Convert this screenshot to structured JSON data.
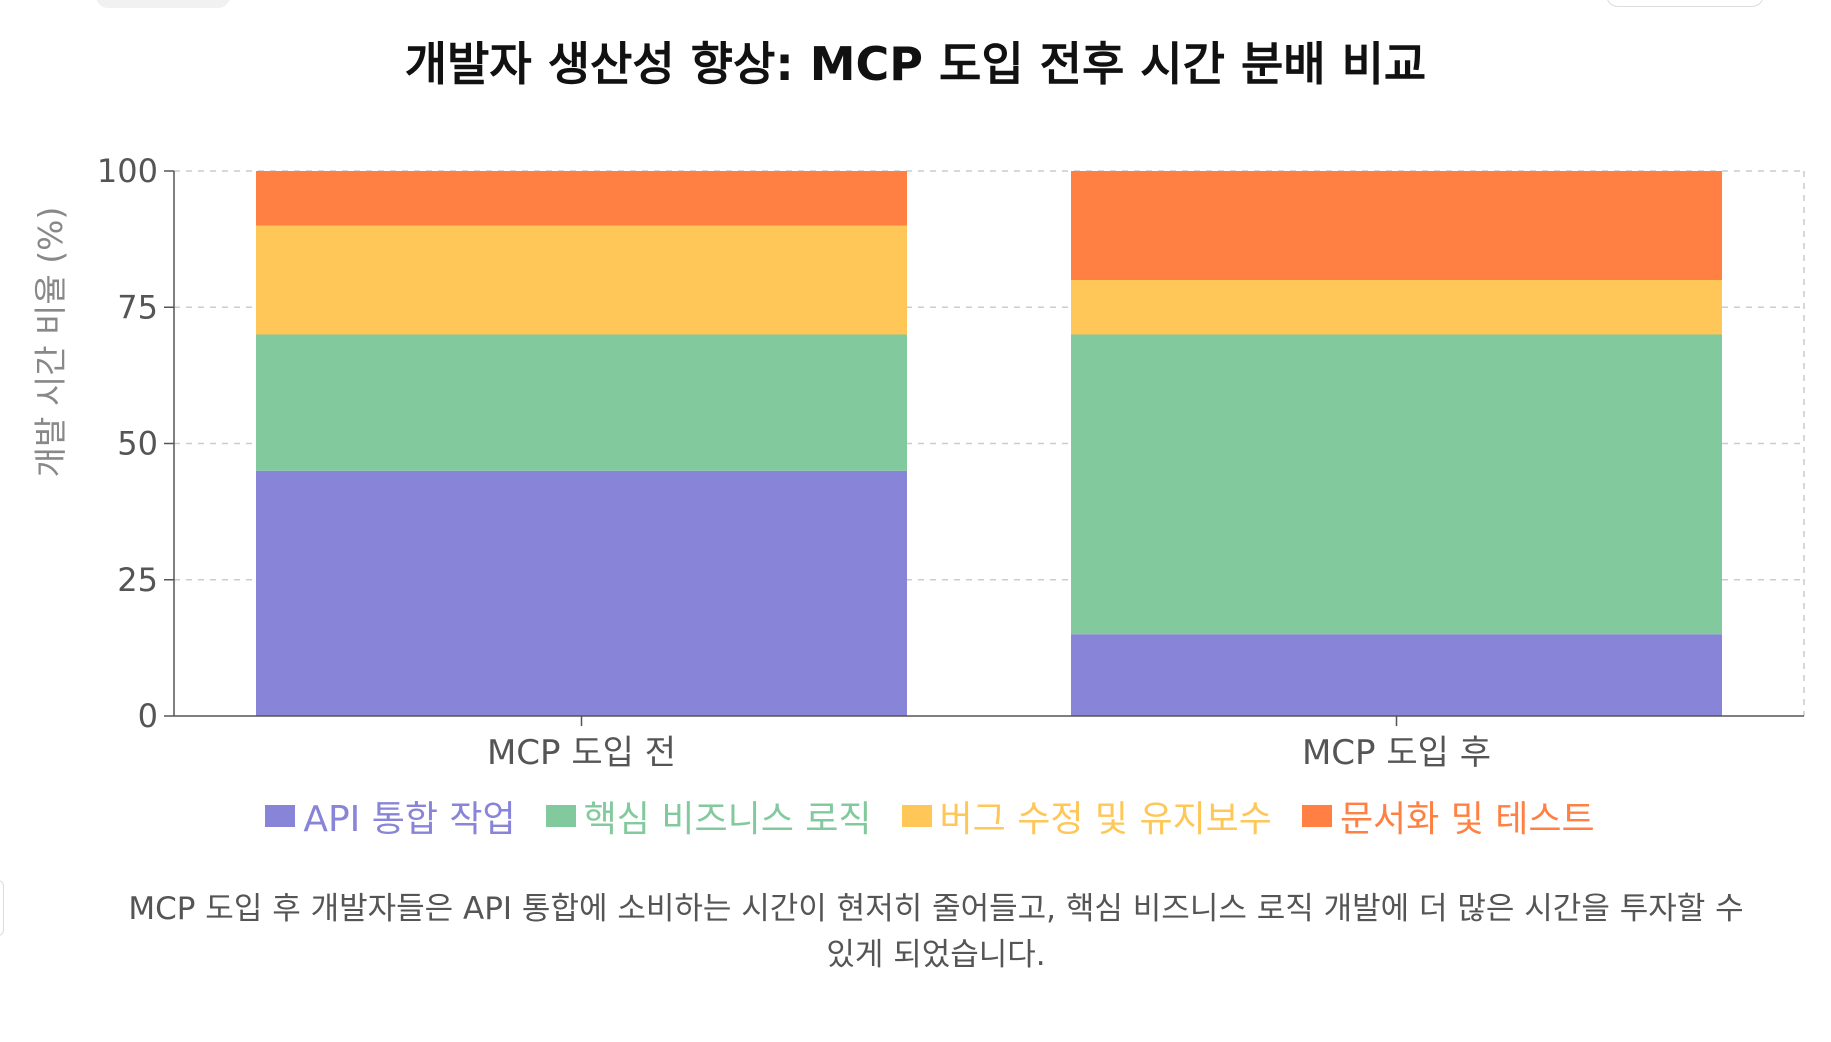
{
  "chart_data": {
    "type": "bar",
    "stacked": true,
    "title": "개발자 생산성 향상: MCP 도입 전후 시간 분배 비교",
    "xlabel": "",
    "ylabel": "개발 시간 비율 (%)",
    "ylim": [
      0,
      100
    ],
    "yticks": [
      0,
      25,
      50,
      75,
      100
    ],
    "grid": true,
    "legend_position": "bottom",
    "categories": [
      "MCP 도입 전",
      "MCP 도입 후"
    ],
    "series": [
      {
        "name": "API 통합 작업",
        "values": [
          45,
          15
        ],
        "color": "#8884d8"
      },
      {
        "name": "핵심 비즈니스 로직",
        "values": [
          25,
          55
        ],
        "color": "#82ca9d"
      },
      {
        "name": "버그 수정 및 유지보수",
        "values": [
          20,
          10
        ],
        "color": "#ffc658"
      },
      {
        "name": "문서화 및 테스트",
        "values": [
          10,
          20
        ],
        "color": "#ff8042"
      }
    ]
  },
  "caption": {
    "line1": "MCP 도입 후 개발자들은 API 통합에 소비하는 시간이 현저히 줄어들고, 핵심 비즈니스 로직 개발에 더 많은 시간을 투자할 수",
    "line2": "있게 되었습니다."
  },
  "colors": {
    "axis": "#555555",
    "grid": "#cccccc"
  }
}
